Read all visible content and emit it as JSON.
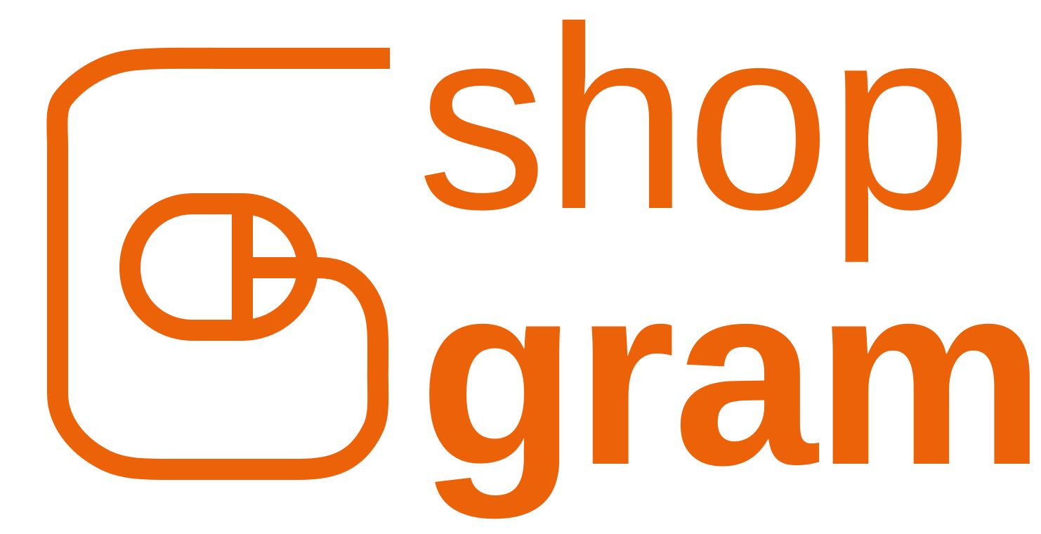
{
  "brand": {
    "line1": "shop",
    "line2": "gram",
    "color": "#EB6209",
    "background": "#FFFFFF"
  },
  "emblem": {
    "icon": "computer-mouse-icon",
    "frame": "rounded-g-outline"
  }
}
